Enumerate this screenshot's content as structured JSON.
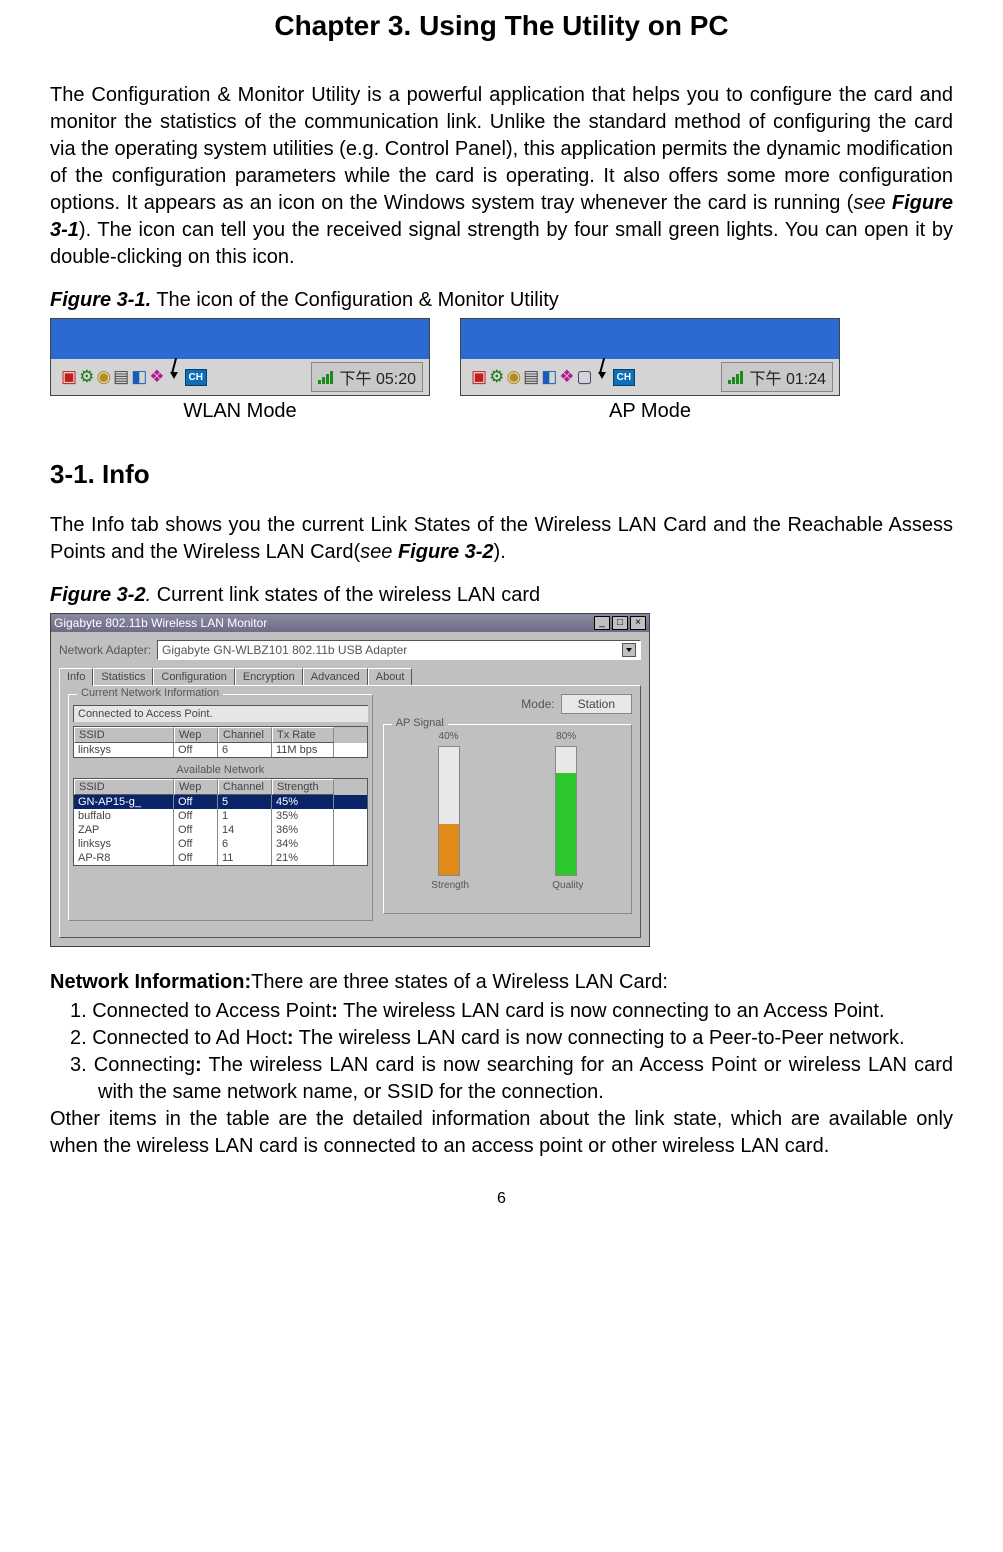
{
  "title": "Chapter 3. Using The Utility on PC",
  "intro": "The Configuration & Monitor Utility is a powerful application that helps you to configure the card and monitor the statistics of the communication link. Unlike the standard method of configuring the card via the operating system utilities (e.g. Control Panel), this application permits the dynamic modification of the configuration parameters while the card is operating. It also offers some more configuration options. It appears as an icon on the Windows system tray whenever the card is running (",
  "intro_see": "see ",
  "intro_fig": "Figure 3-1",
  "intro2": "). The icon can tell you the received signal strength by four small green lights. You can open it by double-clicking on this icon.",
  "fig1": {
    "label": "Figure 3-1.",
    "caption": "  The icon of the Configuration & Monitor Utility"
  },
  "taskbars": {
    "wlan": {
      "time": "下午 05:20",
      "label": "WLAN Mode",
      "ch": "CH"
    },
    "ap": {
      "time": "下午 01:24",
      "label": "AP Mode",
      "ch": "CH"
    }
  },
  "section_h": "3-1.  Info",
  "info_p1a": "The Info tab shows you the current Link States of the Wireless LAN Card and the Reachable Assess Points and the Wireless LAN Card(",
  "info_see": "see ",
  "info_fig": "Figure 3-2",
  "info_p1b": ").",
  "fig2": {
    "label": "Figure 3-2",
    "dot": ".",
    "caption": "  Current link states of the wireless LAN card"
  },
  "dialog": {
    "window_title": "Gigabyte 802.11b Wireless LAN Monitor",
    "adapter_label": "Network Adapter:",
    "adapter_value": "Gigabyte GN-WLBZ101 802.11b USB Adapter",
    "tabs": [
      "Info",
      "Statistics",
      "Configuration",
      "Encryption",
      "Advanced",
      "About"
    ],
    "active_tab": 0,
    "group1_title": "Current Network Information",
    "status": "Connected to Access Point.",
    "mode_label": "Mode:",
    "mode_value": "Station",
    "signal_group": "AP Signal",
    "table1_headers": [
      "SSID",
      "Wep",
      "Channel",
      "Tx Rate"
    ],
    "table1_row": [
      "linksys",
      "Off",
      "6",
      "11M bps"
    ],
    "avail_label": "Available Network",
    "table2_headers": [
      "SSID",
      "Wep",
      "Channel",
      "Strength"
    ],
    "table2_rows": [
      [
        "GN-AP15-g_",
        "Off",
        "5",
        "45%"
      ],
      [
        "buffalo",
        "Off",
        "1",
        "35%"
      ],
      [
        "ZAP",
        "Off",
        "14",
        "36%"
      ],
      [
        "linksys",
        "Off",
        "6",
        "34%"
      ],
      [
        "AP-R8",
        "Off",
        "11",
        "21%"
      ]
    ],
    "signal": {
      "strength_pct": 40,
      "strength_label": "40%",
      "quality_pct": 80,
      "quality_label": "80%",
      "strength_color": "#e08a1a",
      "quality_color": "#2dc72d",
      "bar_labels": [
        "Strength",
        "Quality"
      ]
    }
  },
  "ni_label": "Network Information:",
  "ni_intro": "There are three states of a Wireless LAN Card:",
  "items": [
    {
      "n": "1. Connected to Access Point",
      "colon": ":",
      "t": " The wireless LAN card is now connecting to an Access Point."
    },
    {
      "n": "2. Connected to Ad Hoct",
      "colon": ":",
      "t": " The wireless LAN card is now connecting to a Peer-to-Peer network."
    },
    {
      "n": "3. Connecting",
      "colon": ":",
      "t": " The wireless LAN card is now searching for an Access Point or wireless LAN card with the same network name, or SSID for the connection."
    }
  ],
  "footer": "Other items in the table are the detailed information about the link state, which are available only when the wireless LAN card is connected to an access point or other wireless LAN card.",
  "page_num": "6"
}
